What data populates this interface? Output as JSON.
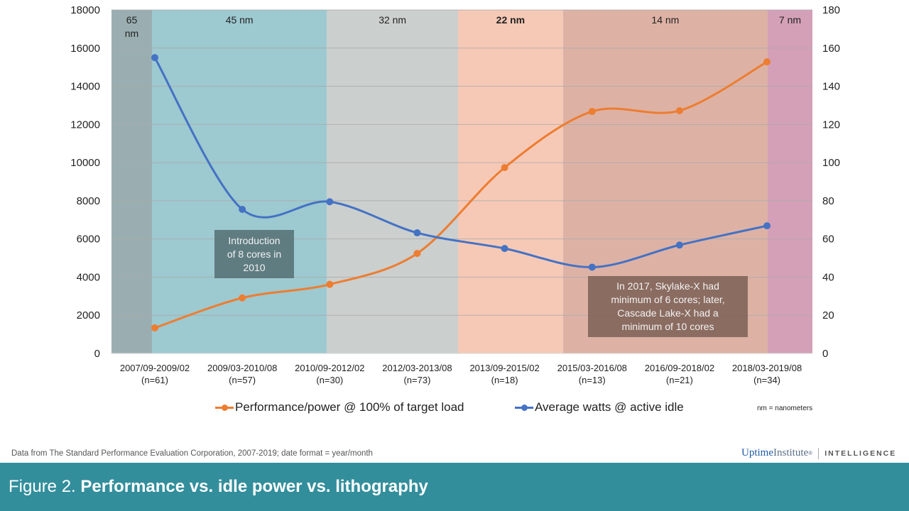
{
  "chart_data": {
    "type": "line",
    "title": "Figure 2. Performance vs. idle power vs. lithography",
    "categories": [
      [
        "2007/09-2009/02",
        "(n=61)"
      ],
      [
        "2009/03-2010/08",
        "(n=57)"
      ],
      [
        "2010/09-2012/02",
        "(n=30)"
      ],
      [
        "2012/03-2013/08",
        "(n=73)"
      ],
      [
        "2013/09-2015/02",
        "(n=18)"
      ],
      [
        "2015/03-2016/08",
        "(n=13)"
      ],
      [
        "2016/09-2018/02",
        "(n=21)"
      ],
      [
        "2018/03-2019/08",
        "(n=34)"
      ]
    ],
    "series": [
      {
        "name": "Performance/power @ 100% of target load",
        "axis": "left",
        "color": "#ed7d31",
        "values": [
          1340,
          2910,
          3620,
          5240,
          9740,
          12680,
          12720,
          15280
        ]
      },
      {
        "name": "Average watts @ active idle",
        "axis": "right",
        "color": "#4472c4",
        "values": [
          155,
          75.5,
          79.5,
          63.2,
          55,
          45.2,
          56.8,
          66.9
        ]
      }
    ],
    "y_left": {
      "range": [
        0,
        18000
      ],
      "ticks": [
        "0",
        "2000",
        "4000",
        "6000",
        "8000",
        "10000",
        "12000",
        "14000",
        "16000",
        "18000"
      ]
    },
    "y_right": {
      "range": [
        0,
        180
      ],
      "ticks": [
        "0",
        "20",
        "40",
        "60",
        "80",
        "100",
        "120",
        "140",
        "160",
        "180"
      ]
    },
    "grid": true,
    "legend_position": "bottom",
    "bands": [
      {
        "label_lines": [
          "65",
          "nm"
        ],
        "bold": false,
        "color": "#9aaeb1",
        "from": -0.77,
        "to": 0.0
      },
      {
        "label_lines": [
          "45 nm"
        ],
        "bold": false,
        "color": "#9dc9d0",
        "from": 0.0,
        "to": 2.0
      },
      {
        "label_lines": [
          "32 nm"
        ],
        "bold": false,
        "color": "#cbcfce",
        "from": 2.0,
        "to": 3.5
      },
      {
        "label_lines": [
          "22 nm"
        ],
        "bold": true,
        "color": "#f6c9b6",
        "from": 3.5,
        "to": 4.7
      },
      {
        "label_lines": [
          "14 nm"
        ],
        "bold": false,
        "color": "#ddb2a5",
        "from": 4.7,
        "to": 7.04
      },
      {
        "label_lines": [
          "7 nm"
        ],
        "bold": false,
        "color": "#d4a0b7",
        "from": 7.04,
        "to": 7.5
      }
    ],
    "annotations": [
      {
        "text_lines": [
          "Introduction",
          "of 8 cores in",
          "2010"
        ]
      },
      {
        "text_lines": [
          "In 2017, Skylake-X had",
          "minimum of 6 cores; later,",
          "Cascade Lake-X had a",
          "minimum of 10 cores"
        ]
      }
    ]
  },
  "legend": {
    "perf_label": "Performance/power @ 100% of target load",
    "watts_label": "Average watts @ active idle",
    "nm_note": "nm = nanometers"
  },
  "source_note": "Data from The Standard Performance Evaluation Corporation, 2007-2019; date format = year/month",
  "logo": {
    "uptime": "Uptime",
    "institute": "Institute",
    "reg": "®",
    "intelligence": "INTELLIGENCE"
  },
  "footer": {
    "figure_prefix": "Figure 2.",
    "figure_title": "Performance vs. idle power vs. lithography"
  },
  "colors": {
    "footer_bg": "#338e9c",
    "orange": "#ed7d31",
    "blue": "#4472c4"
  }
}
